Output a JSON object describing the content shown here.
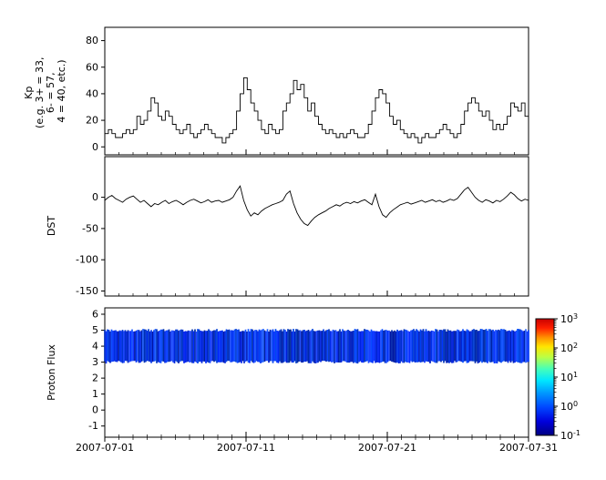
{
  "figure": {
    "background": "#ffffff",
    "x_ticks": [
      "2007-07-01",
      "2007-07-11",
      "2007-07-21",
      "2007-07-31"
    ],
    "x_axis_range": [
      "2007-07-01",
      "2007-07-31"
    ],
    "axis_color": "#000000"
  },
  "chart_data": [
    {
      "type": "line",
      "interpolation": "step",
      "ylabel": "Kp (e.g. 3+ = 33, 6- = 57, 4 = 40, etc.)",
      "ylabel_lines": [
        "Kp",
        "(e.g. 3+ = 33,",
        "6- = 57,",
        "4 = 40, etc.)"
      ],
      "ylim": [
        -6,
        90
      ],
      "yticks": [
        0,
        20,
        40,
        60,
        80
      ],
      "x_start": "2007-07-01",
      "x_end": "2007-07-31",
      "points_per_day": 4,
      "x_tick_labels": [
        "2007-07-01",
        "2007-07-11",
        "2007-07-21",
        "2007-07-31"
      ],
      "line_color": "#000000",
      "values": [
        10,
        13,
        10,
        7,
        7,
        10,
        13,
        10,
        13,
        23,
        17,
        20,
        27,
        37,
        33,
        23,
        20,
        27,
        23,
        17,
        13,
        10,
        13,
        17,
        10,
        7,
        10,
        13,
        17,
        13,
        10,
        7,
        7,
        3,
        7,
        10,
        13,
        27,
        40,
        52,
        43,
        33,
        27,
        20,
        13,
        10,
        17,
        13,
        10,
        13,
        27,
        33,
        40,
        50,
        43,
        47,
        37,
        27,
        33,
        23,
        17,
        13,
        10,
        13,
        10,
        7,
        10,
        7,
        10,
        13,
        10,
        7,
        7,
        10,
        17,
        27,
        37,
        43,
        40,
        33,
        23,
        17,
        20,
        13,
        10,
        7,
        10,
        7,
        3,
        7,
        10,
        7,
        7,
        10,
        13,
        17,
        13,
        10,
        7,
        10,
        17,
        27,
        33,
        37,
        33,
        27,
        23,
        27,
        20,
        13,
        17,
        13,
        17,
        23,
        33,
        30,
        27,
        33,
        23,
        27
      ]
    },
    {
      "type": "line",
      "interpolation": "linear",
      "ylabel": "DST",
      "ylim": [
        -158,
        65
      ],
      "yticks": [
        0,
        -50,
        -100,
        -150
      ],
      "x_start": "2007-07-01",
      "x_end": "2007-07-31",
      "points_per_day": 4,
      "x_tick_labels": [
        "2007-07-01",
        "2007-07-11",
        "2007-07-21",
        "2007-07-31"
      ],
      "line_color": "#000000",
      "values": [
        -5,
        0,
        3,
        -2,
        -5,
        -8,
        -3,
        0,
        2,
        -3,
        -8,
        -5,
        -10,
        -15,
        -10,
        -12,
        -8,
        -5,
        -10,
        -7,
        -5,
        -8,
        -12,
        -8,
        -5,
        -3,
        -6,
        -9,
        -7,
        -4,
        -8,
        -6,
        -5,
        -8,
        -6,
        -4,
        0,
        10,
        18,
        -5,
        -20,
        -30,
        -25,
        -28,
        -22,
        -18,
        -15,
        -12,
        -10,
        -8,
        -5,
        5,
        10,
        -10,
        -25,
        -35,
        -42,
        -45,
        -38,
        -32,
        -28,
        -25,
        -22,
        -18,
        -15,
        -12,
        -14,
        -10,
        -8,
        -10,
        -7,
        -9,
        -6,
        -4,
        -8,
        -12,
        5,
        -15,
        -28,
        -32,
        -25,
        -20,
        -16,
        -12,
        -10,
        -8,
        -11,
        -9,
        -7,
        -5,
        -8,
        -6,
        -4,
        -7,
        -5,
        -8,
        -6,
        -3,
        -5,
        -2,
        5,
        12,
        16,
        8,
        0,
        -5,
        -8,
        -4,
        -6,
        -9,
        -5,
        -7,
        -3,
        2,
        8,
        4,
        -2,
        -6,
        -3,
        -5
      ]
    },
    {
      "type": "heatmap",
      "ylabel": "Proton Flux",
      "ylim": [
        -1.7,
        6.4
      ],
      "yticks": [
        6,
        5,
        4,
        3,
        2,
        1,
        0,
        -1
      ],
      "x_start": "2007-07-01",
      "x_end": "2007-07-31",
      "x_tick_labels": [
        "2007-07-01",
        "2007-07-11",
        "2007-07-21",
        "2007-07-31"
      ],
      "band": {
        "y_min": 3,
        "y_max": 5,
        "color": "#0026ff",
        "description": "continuous low-intensity proton flux spectrogram band between y=3 and y=5"
      },
      "colorbar": {
        "scale": "log",
        "min": 0.1,
        "max": 1000,
        "tick_labels": [
          "10^3",
          "10^2",
          "10^1",
          "10^0",
          "10^-1"
        ],
        "colormap": "jet"
      }
    }
  ]
}
